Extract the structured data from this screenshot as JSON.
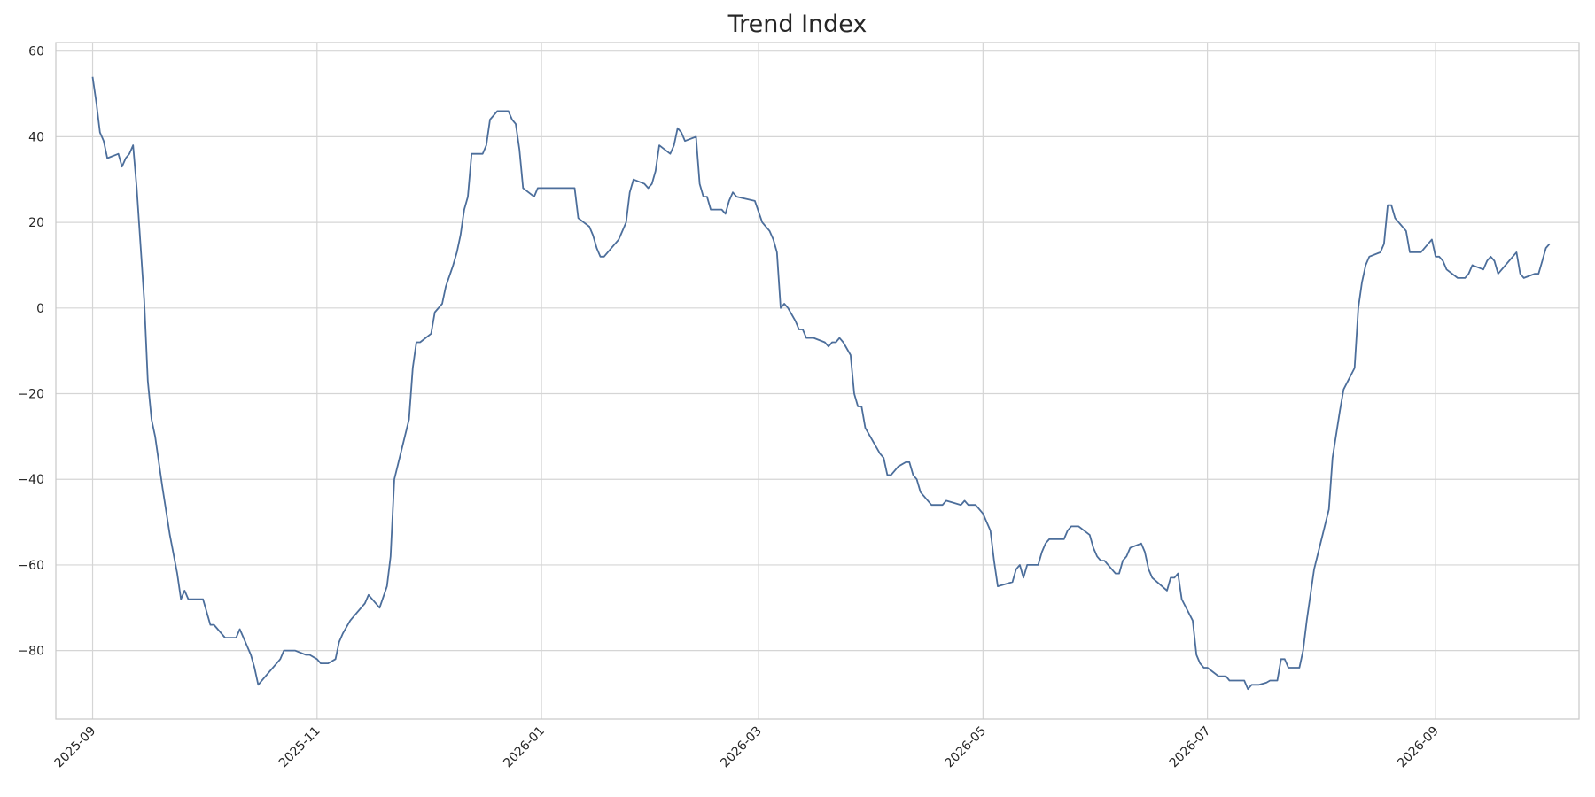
{
  "chart_data": {
    "type": "line",
    "title": "Trend Index",
    "xlabel": "",
    "ylabel": "",
    "x_type": "date",
    "xlim": [
      "2025-08-22",
      "2026-10-10"
    ],
    "ylim": [
      -96,
      62
    ],
    "x_ticks": [
      "2025-09",
      "2025-11",
      "2026-01",
      "2026-03",
      "2026-05",
      "2026-07",
      "2026-09"
    ],
    "y_ticks": [
      -80,
      -60,
      -40,
      -20,
      0,
      20,
      40,
      60
    ],
    "grid": true,
    "legend": "none",
    "line_color": "#4c6e9b",
    "series": [
      {
        "points": [
          [
            "2025-09-01",
            54
          ],
          [
            "2025-09-02",
            48
          ],
          [
            "2025-09-03",
            41
          ],
          [
            "2025-09-04",
            39
          ],
          [
            "2025-09-05",
            35
          ],
          [
            "2025-09-08",
            36
          ],
          [
            "2025-09-09",
            33
          ],
          [
            "2025-09-10",
            35
          ],
          [
            "2025-09-11",
            36
          ],
          [
            "2025-09-12",
            38
          ],
          [
            "2025-09-13",
            28
          ],
          [
            "2025-09-14",
            15
          ],
          [
            "2025-09-15",
            2
          ],
          [
            "2025-09-16",
            -17
          ],
          [
            "2025-09-17",
            -26
          ],
          [
            "2025-09-18",
            -30
          ],
          [
            "2025-09-20",
            -42
          ],
          [
            "2025-09-22",
            -53
          ],
          [
            "2025-09-24",
            -62
          ],
          [
            "2025-09-25",
            -68
          ],
          [
            "2025-09-26",
            -66
          ],
          [
            "2025-09-27",
            -68
          ],
          [
            "2025-09-28",
            -68
          ],
          [
            "2025-09-30",
            -68
          ],
          [
            "2025-10-01",
            -68
          ],
          [
            "2025-10-03",
            -74
          ],
          [
            "2025-10-04",
            -74
          ],
          [
            "2025-10-07",
            -77
          ],
          [
            "2025-10-09",
            -77
          ],
          [
            "2025-10-10",
            -77
          ],
          [
            "2025-10-11",
            -75
          ],
          [
            "2025-10-12",
            -77
          ],
          [
            "2025-10-14",
            -81
          ],
          [
            "2025-10-15",
            -84
          ],
          [
            "2025-10-16",
            -88
          ],
          [
            "2025-10-19",
            -85
          ],
          [
            "2025-10-22",
            -82
          ],
          [
            "2025-10-23",
            -80
          ],
          [
            "2025-10-24",
            -80
          ],
          [
            "2025-10-26",
            -80
          ],
          [
            "2025-10-29",
            -81
          ],
          [
            "2025-10-30",
            -81
          ],
          [
            "2025-11-01",
            -82
          ],
          [
            "2025-11-02",
            -83
          ],
          [
            "2025-11-04",
            -83
          ],
          [
            "2025-11-06",
            -82
          ],
          [
            "2025-11-07",
            -78
          ],
          [
            "2025-11-08",
            -76
          ],
          [
            "2025-11-10",
            -73
          ],
          [
            "2025-11-11",
            -72
          ],
          [
            "2025-11-14",
            -69
          ],
          [
            "2025-11-15",
            -67
          ],
          [
            "2025-11-18",
            -70
          ],
          [
            "2025-11-20",
            -65
          ],
          [
            "2025-11-21",
            -58
          ],
          [
            "2025-11-22",
            -40
          ],
          [
            "2025-11-24",
            -33
          ],
          [
            "2025-11-26",
            -26
          ],
          [
            "2025-11-27",
            -14
          ],
          [
            "2025-11-28",
            -8
          ],
          [
            "2025-11-29",
            -8
          ],
          [
            "2025-12-02",
            -6
          ],
          [
            "2025-12-03",
            -1
          ],
          [
            "2025-12-05",
            1
          ],
          [
            "2025-12-06",
            5
          ],
          [
            "2025-12-08",
            10
          ],
          [
            "2025-12-09",
            13
          ],
          [
            "2025-12-10",
            17
          ],
          [
            "2025-12-11",
            23
          ],
          [
            "2025-12-12",
            26
          ],
          [
            "2025-12-13",
            36
          ],
          [
            "2025-12-16",
            36
          ],
          [
            "2025-12-17",
            38
          ],
          [
            "2025-12-18",
            44
          ],
          [
            "2025-12-20",
            46
          ],
          [
            "2025-12-23",
            46
          ],
          [
            "2025-12-24",
            44
          ],
          [
            "2025-12-25",
            43
          ],
          [
            "2025-12-26",
            37
          ],
          [
            "2025-12-27",
            28
          ],
          [
            "2025-12-30",
            26
          ],
          [
            "2025-12-31",
            28
          ],
          [
            "2026-01-01",
            28
          ],
          [
            "2026-01-10",
            28
          ],
          [
            "2026-01-11",
            21
          ],
          [
            "2026-01-14",
            19
          ],
          [
            "2026-01-15",
            17
          ],
          [
            "2026-01-16",
            14
          ],
          [
            "2026-01-17",
            12
          ],
          [
            "2026-01-18",
            12
          ],
          [
            "2026-01-20",
            14
          ],
          [
            "2026-01-22",
            16
          ],
          [
            "2026-01-24",
            20
          ],
          [
            "2026-01-25",
            27
          ],
          [
            "2026-01-26",
            30
          ],
          [
            "2026-01-29",
            29
          ],
          [
            "2026-01-30",
            28
          ],
          [
            "2026-01-31",
            29
          ],
          [
            "2026-02-01",
            32
          ],
          [
            "2026-02-02",
            38
          ],
          [
            "2026-02-05",
            36
          ],
          [
            "2026-02-06",
            38
          ],
          [
            "2026-02-07",
            42
          ],
          [
            "2026-02-08",
            41
          ],
          [
            "2026-02-09",
            39
          ],
          [
            "2026-02-12",
            40
          ],
          [
            "2026-02-13",
            29
          ],
          [
            "2026-02-14",
            26
          ],
          [
            "2026-02-15",
            26
          ],
          [
            "2026-02-16",
            23
          ],
          [
            "2026-02-19",
            23
          ],
          [
            "2026-02-20",
            22
          ],
          [
            "2026-02-21",
            25
          ],
          [
            "2026-02-22",
            27
          ],
          [
            "2026-02-23",
            26
          ],
          [
            "2026-02-28",
            25
          ],
          [
            "2026-03-02",
            20
          ],
          [
            "2026-03-04",
            18
          ],
          [
            "2026-03-05",
            16
          ],
          [
            "2026-03-06",
            13
          ],
          [
            "2026-03-07",
            0
          ],
          [
            "2026-03-08",
            1
          ],
          [
            "2026-03-09",
            0
          ],
          [
            "2026-03-11",
            -3
          ],
          [
            "2026-03-12",
            -5
          ],
          [
            "2026-03-13",
            -5
          ],
          [
            "2026-03-14",
            -7
          ],
          [
            "2026-03-16",
            -7
          ],
          [
            "2026-03-19",
            -8
          ],
          [
            "2026-03-20",
            -9
          ],
          [
            "2026-03-21",
            -8
          ],
          [
            "2026-03-22",
            -8
          ],
          [
            "2026-03-23",
            -7
          ],
          [
            "2026-03-24",
            -8
          ],
          [
            "2026-03-26",
            -11
          ],
          [
            "2026-03-27",
            -20
          ],
          [
            "2026-03-28",
            -23
          ],
          [
            "2026-03-29",
            -23
          ],
          [
            "2026-03-30",
            -28
          ],
          [
            "2026-04-01",
            -31
          ],
          [
            "2026-04-03",
            -34
          ],
          [
            "2026-04-04",
            -35
          ],
          [
            "2026-04-05",
            -39
          ],
          [
            "2026-04-06",
            -39
          ],
          [
            "2026-04-08",
            -37
          ],
          [
            "2026-04-10",
            -36
          ],
          [
            "2026-04-11",
            -36
          ],
          [
            "2026-04-12",
            -39
          ],
          [
            "2026-04-13",
            -40
          ],
          [
            "2026-04-14",
            -43
          ],
          [
            "2026-04-16",
            -45
          ],
          [
            "2026-04-17",
            -46
          ],
          [
            "2026-04-20",
            -46
          ],
          [
            "2026-04-21",
            -45
          ],
          [
            "2026-04-23",
            -45.5
          ],
          [
            "2026-04-25",
            -46
          ],
          [
            "2026-04-26",
            -45
          ],
          [
            "2026-04-27",
            -46
          ],
          [
            "2026-04-29",
            -46
          ],
          [
            "2026-05-01",
            -48
          ],
          [
            "2026-05-02",
            -50
          ],
          [
            "2026-05-03",
            -52
          ],
          [
            "2026-05-04",
            -59
          ],
          [
            "2026-05-05",
            -65
          ],
          [
            "2026-05-09",
            -64
          ],
          [
            "2026-05-10",
            -61
          ],
          [
            "2026-05-11",
            -60
          ],
          [
            "2026-05-12",
            -63
          ],
          [
            "2026-05-13",
            -60
          ],
          [
            "2026-05-16",
            -60
          ],
          [
            "2026-05-17",
            -57
          ],
          [
            "2026-05-18",
            -55
          ],
          [
            "2026-05-19",
            -54
          ],
          [
            "2026-05-23",
            -54
          ],
          [
            "2026-05-24",
            -52
          ],
          [
            "2026-05-25",
            -51
          ],
          [
            "2026-05-27",
            -51
          ],
          [
            "2026-05-30",
            -53
          ],
          [
            "2026-05-31",
            -56
          ],
          [
            "2026-06-01",
            -58
          ],
          [
            "2026-06-02",
            -59
          ],
          [
            "2026-06-03",
            -59
          ],
          [
            "2026-06-06",
            -62
          ],
          [
            "2026-06-07",
            -62
          ],
          [
            "2026-06-08",
            -59
          ],
          [
            "2026-06-09",
            -58
          ],
          [
            "2026-06-10",
            -56
          ],
          [
            "2026-06-13",
            -55
          ],
          [
            "2026-06-14",
            -57
          ],
          [
            "2026-06-15",
            -61
          ],
          [
            "2026-06-16",
            -63
          ],
          [
            "2026-06-20",
            -66
          ],
          [
            "2026-06-21",
            -63
          ],
          [
            "2026-06-22",
            -63
          ],
          [
            "2026-06-23",
            -62
          ],
          [
            "2026-06-24",
            -68
          ],
          [
            "2026-06-27",
            -73
          ],
          [
            "2026-06-28",
            -81
          ],
          [
            "2026-06-29",
            -83
          ],
          [
            "2026-06-30",
            -84
          ],
          [
            "2026-07-01",
            -84
          ],
          [
            "2026-07-04",
            -86
          ],
          [
            "2026-07-06",
            -86
          ],
          [
            "2026-07-07",
            -87
          ],
          [
            "2026-07-11",
            -87
          ],
          [
            "2026-07-12",
            -89
          ],
          [
            "2026-07-13",
            -88
          ],
          [
            "2026-07-15",
            -88
          ],
          [
            "2026-07-17",
            -87.5
          ],
          [
            "2026-07-18",
            -87
          ],
          [
            "2026-07-20",
            -87
          ],
          [
            "2026-07-21",
            -82
          ],
          [
            "2026-07-22",
            -82
          ],
          [
            "2026-07-23",
            -84
          ],
          [
            "2026-07-26",
            -84
          ],
          [
            "2026-07-27",
            -80
          ],
          [
            "2026-07-28",
            -73
          ],
          [
            "2026-07-30",
            -61
          ],
          [
            "2026-08-03",
            -47
          ],
          [
            "2026-08-04",
            -35
          ],
          [
            "2026-08-06",
            -24
          ],
          [
            "2026-08-07",
            -19
          ],
          [
            "2026-08-10",
            -14
          ],
          [
            "2026-08-11",
            0
          ],
          [
            "2026-08-12",
            6
          ],
          [
            "2026-08-13",
            10
          ],
          [
            "2026-08-14",
            12
          ],
          [
            "2026-08-17",
            13
          ],
          [
            "2026-08-18",
            15
          ],
          [
            "2026-08-19",
            24
          ],
          [
            "2026-08-20",
            24
          ],
          [
            "2026-08-21",
            21
          ],
          [
            "2026-08-24",
            18
          ],
          [
            "2026-08-25",
            13
          ],
          [
            "2026-08-28",
            13
          ],
          [
            "2026-08-31",
            16
          ],
          [
            "2026-09-01",
            12
          ],
          [
            "2026-09-02",
            12
          ],
          [
            "2026-09-03",
            11
          ],
          [
            "2026-09-04",
            9
          ],
          [
            "2026-09-07",
            7
          ],
          [
            "2026-09-09",
            7
          ],
          [
            "2026-09-10",
            8
          ],
          [
            "2026-09-11",
            10
          ],
          [
            "2026-09-14",
            9
          ],
          [
            "2026-09-15",
            11
          ],
          [
            "2026-09-16",
            12
          ],
          [
            "2026-09-17",
            11
          ],
          [
            "2026-09-18",
            8
          ],
          [
            "2026-09-23",
            13
          ],
          [
            "2026-09-24",
            8
          ],
          [
            "2026-09-25",
            7
          ],
          [
            "2026-09-28",
            8
          ],
          [
            "2026-09-29",
            8
          ],
          [
            "2026-09-30",
            11
          ],
          [
            "2026-10-01",
            14
          ],
          [
            "2026-10-02",
            15
          ]
        ]
      }
    ]
  }
}
